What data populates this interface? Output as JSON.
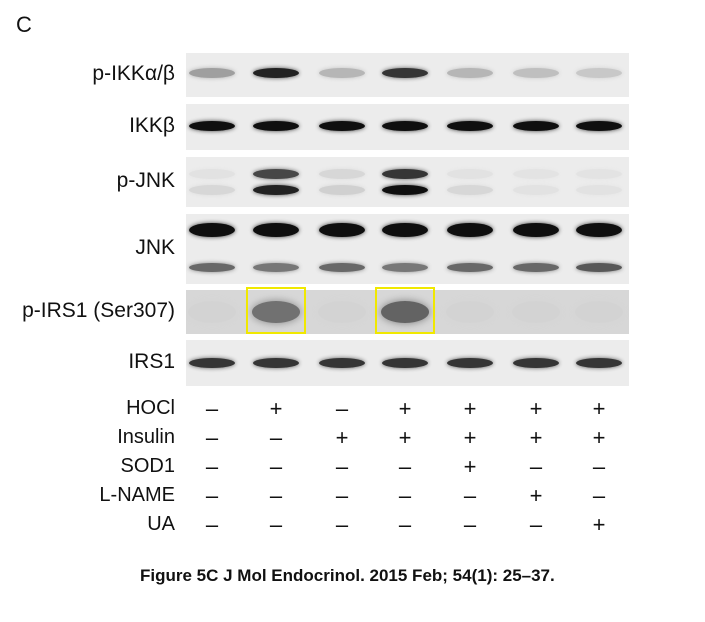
{
  "panel_letter": "C",
  "caption": "Figure 5C J Mol Endocrinol. 2015 Feb; 54(1): 25–37.",
  "blots": [
    {
      "id": "p-ikk",
      "label": "p-IKKα/β",
      "rows": [
        {
          "intensity": [
            0.55,
            0.95,
            0.45,
            0.9,
            0.45,
            0.4,
            0.35
          ]
        }
      ]
    },
    {
      "id": "ikkb",
      "label": "IKKβ",
      "rows": [
        {
          "intensity": [
            1,
            1,
            1,
            1,
            1,
            1,
            1
          ]
        }
      ]
    },
    {
      "id": "p-jnk",
      "label": "p-JNK",
      "rows": [
        {
          "intensity": [
            0.15,
            0.85,
            0.25,
            0.9,
            0.15,
            0.1,
            0.1
          ]
        },
        {
          "intensity": [
            0.25,
            0.95,
            0.3,
            1,
            0.25,
            0.15,
            0.15
          ]
        }
      ]
    },
    {
      "id": "jnk",
      "label": "JNK",
      "rows": [
        {
          "intensity": [
            1,
            1,
            1,
            1,
            1,
            1,
            1
          ]
        },
        {
          "intensity": [
            0.75,
            0.7,
            0.75,
            0.7,
            0.75,
            0.75,
            0.8
          ]
        }
      ]
    },
    {
      "id": "p-irs1",
      "label": "p-IRS1 (Ser307)",
      "highlighted_lanes": [
        2,
        4
      ],
      "rows": [
        {
          "intensity": [
            0.05,
            0.7,
            0.05,
            0.75,
            0.05,
            0.05,
            0.05
          ]
        }
      ]
    },
    {
      "id": "irs1",
      "label": "IRS1",
      "rows": [
        {
          "intensity": [
            0.9,
            0.9,
            0.9,
            0.9,
            0.9,
            0.9,
            0.9
          ]
        }
      ]
    }
  ],
  "conditions": [
    {
      "id": "hocl",
      "label": "HOCl",
      "signs": [
        "–",
        "+",
        "–",
        "+",
        "+",
        "+",
        "+"
      ]
    },
    {
      "id": "insulin",
      "label": "Insulin",
      "signs": [
        "–",
        "–",
        "+",
        "+",
        "+",
        "+",
        "+"
      ]
    },
    {
      "id": "sod1",
      "label": "SOD1",
      "signs": [
        "–",
        "–",
        "–",
        "–",
        "+",
        "–",
        "–"
      ]
    },
    {
      "id": "l-name",
      "label": "L-NAME",
      "signs": [
        "–",
        "–",
        "–",
        "–",
        "–",
        "+",
        "–"
      ]
    },
    {
      "id": "ua",
      "label": "UA",
      "signs": [
        "–",
        "–",
        "–",
        "–",
        "–",
        "–",
        "+"
      ]
    }
  ]
}
